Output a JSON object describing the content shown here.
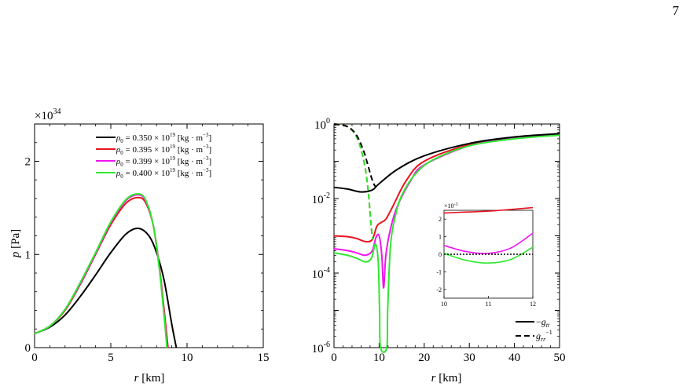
{
  "page_number": "7",
  "chart_data": [
    {
      "type": "line",
      "xlabel": "r [km]",
      "ylabel": "p [Pa]",
      "y_multiplier": "×10^34",
      "xlim": [
        0,
        15
      ],
      "ylim": [
        0,
        2.4
      ],
      "x_ticks": [
        "0",
        "5",
        "10",
        "15"
      ],
      "y_ticks": [
        "0",
        "1",
        "2"
      ],
      "legend_position": "top-right",
      "series": [
        {
          "name": "ρ0 = 0.350 × 10^19 [kg · m^-3]",
          "color": "#000000",
          "x": [
            0,
            1,
            2,
            3,
            4,
            5,
            6,
            6.8,
            7.5,
            8,
            8.5,
            9,
            9.3
          ],
          "y": [
            0.15,
            0.22,
            0.35,
            0.55,
            0.78,
            1.02,
            1.22,
            1.28,
            1.2,
            1.02,
            0.72,
            0.25,
            0
          ]
        },
        {
          "name": "ρ0 = 0.395 × 10^19 [kg · m^-3]",
          "color": "#e8141e",
          "x": [
            0,
            1,
            2,
            3,
            4,
            5,
            6,
            6.8,
            7.3,
            7.8,
            8.2,
            8.5,
            8.75
          ],
          "y": [
            0.15,
            0.23,
            0.4,
            0.68,
            1.0,
            1.32,
            1.55,
            1.61,
            1.55,
            1.3,
            0.85,
            0.4,
            0
          ]
        },
        {
          "name": "ρ0 = 0.399 × 10^19 [kg · m^-3]",
          "color": "#f014f0",
          "x": [
            0,
            1,
            2,
            3,
            4,
            5,
            6,
            6.8,
            7.3,
            7.8,
            8.2,
            8.5,
            8.7
          ],
          "y": [
            0.15,
            0.23,
            0.41,
            0.69,
            1.01,
            1.34,
            1.58,
            1.64,
            1.57,
            1.3,
            0.83,
            0.35,
            0
          ]
        },
        {
          "name": "ρ0 = 0.400 × 10^19 [kg · m^-3]",
          "color": "#2ee82e",
          "x": [
            0,
            1,
            2,
            3,
            4,
            5,
            6,
            6.8,
            7.3,
            7.8,
            8.2,
            8.5,
            8.68
          ],
          "y": [
            0.15,
            0.23,
            0.41,
            0.7,
            1.02,
            1.35,
            1.59,
            1.65,
            1.58,
            1.3,
            0.82,
            0.33,
            0
          ]
        }
      ]
    },
    {
      "type": "line",
      "xlabel": "r [km]",
      "y_scale": "log",
      "xlim": [
        0,
        50
      ],
      "ylim": [
        1e-06,
        1
      ],
      "x_ticks": [
        "0",
        "10",
        "20",
        "30",
        "40",
        "50"
      ],
      "y_ticks": [
        "10^0",
        "10^-2",
        "10^-4",
        "10^-6"
      ],
      "legend_position": "bottom-right",
      "legend": [
        {
          "label": "−g_tt",
          "style": "solid"
        },
        {
          "label": "g_rr^−1",
          "style": "dashed"
        }
      ],
      "series": [
        {
          "name": "−g_tt",
          "color": "#000000",
          "style": "solid",
          "x": [
            0,
            3,
            6,
            8.5,
            10,
            14,
            20,
            30,
            40,
            50
          ],
          "y": [
            0.02,
            0.018,
            0.015,
            0.017,
            0.025,
            0.06,
            0.14,
            0.3,
            0.45,
            0.55
          ]
        },
        {
          "name": "g_rr^−1",
          "color": "#000000",
          "style": "dashed",
          "x": [
            0,
            3,
            5,
            6.5,
            7.5,
            8.2,
            8.8,
            9.3
          ],
          "y": [
            1.0,
            0.85,
            0.5,
            0.2,
            0.08,
            0.04,
            0.025,
            0.02
          ]
        },
        {
          "name": "red",
          "color": "#e8141e",
          "style": "solid",
          "x": [
            0,
            3,
            5,
            7,
            8.5,
            9.5,
            10.5,
            11.5,
            13,
            16,
            20,
            30,
            40,
            50
          ],
          "y": [
            0.001,
            0.00095,
            0.00085,
            0.0007,
            0.0008,
            0.0018,
            0.0023,
            0.0028,
            0.006,
            0.03,
            0.1,
            0.28,
            0.42,
            0.52
          ]
        },
        {
          "name": "red-dashed",
          "color": "#e8141e",
          "style": "dashed",
          "x": [
            0,
            3,
            5,
            6.5,
            7.5,
            8.2,
            8.6
          ],
          "y": [
            1.0,
            0.85,
            0.45,
            0.12,
            0.02,
            0.002,
            0.0008
          ]
        },
        {
          "name": "magenta",
          "color": "#f014f0",
          "style": "solid",
          "x": [
            0,
            3,
            5,
            7,
            8.5,
            9.3,
            10,
            10.6,
            11,
            11.5,
            12.5,
            14,
            17,
            20,
            30,
            40,
            50
          ],
          "y": [
            0.00045,
            0.0004,
            0.00035,
            0.0003,
            0.0004,
            0.0009,
            0.001,
            0.0003,
            4e-05,
            0.0003,
            0.0015,
            0.006,
            0.03,
            0.08,
            0.26,
            0.41,
            0.51
          ]
        },
        {
          "name": "green",
          "color": "#2ee82e",
          "style": "solid",
          "x": [
            0,
            3,
            5,
            7,
            8.3,
            9.2,
            9.8,
            10.1,
            10.3,
            11.7,
            11.9,
            12.5,
            13.5,
            15,
            18,
            22,
            30,
            40,
            50
          ],
          "y": [
            0.00035,
            0.0003,
            0.00025,
            0.0002,
            0.00025,
            0.0006,
            0.0002,
            1e-05,
            1e-06,
            1e-06,
            1e-05,
            0.0005,
            0.003,
            0.012,
            0.045,
            0.11,
            0.26,
            0.4,
            0.5
          ]
        },
        {
          "name": "green-dashed",
          "color": "#2ee82e",
          "style": "dashed",
          "x": [
            0,
            3,
            5,
            6.5,
            7.5,
            8.2,
            8.6
          ],
          "y": [
            1.0,
            0.85,
            0.45,
            0.12,
            0.02,
            0.002,
            0.0008
          ]
        }
      ]
    },
    {
      "type": "line",
      "inset": true,
      "y_multiplier": "×10^-3",
      "xlim": [
        10,
        12
      ],
      "ylim": [
        -2.5,
        2.5
      ],
      "x_ticks": [
        "10",
        "11",
        "12"
      ],
      "y_ticks": [
        "2",
        "1",
        "0",
        "-1",
        "-2"
      ],
      "series": [
        {
          "name": "red",
          "color": "#e8141e",
          "x": [
            10,
            10.5,
            11,
            11.5,
            12
          ],
          "y": [
            2.35,
            2.4,
            2.45,
            2.55,
            2.65
          ]
        },
        {
          "name": "magenta",
          "color": "#f014f0",
          "x": [
            10,
            10.5,
            11,
            11.5,
            12
          ],
          "y": [
            0.5,
            0.15,
            0.05,
            0.35,
            1.2
          ]
        },
        {
          "name": "green",
          "color": "#2ee82e",
          "x": [
            10,
            10.5,
            11,
            11.5,
            12
          ],
          "y": [
            0.05,
            -0.35,
            -0.5,
            -0.3,
            0.4
          ]
        },
        {
          "name": "zero",
          "color": "#000000",
          "style": "dotted",
          "x": [
            10,
            12
          ],
          "y": [
            0,
            0
          ]
        }
      ]
    }
  ]
}
